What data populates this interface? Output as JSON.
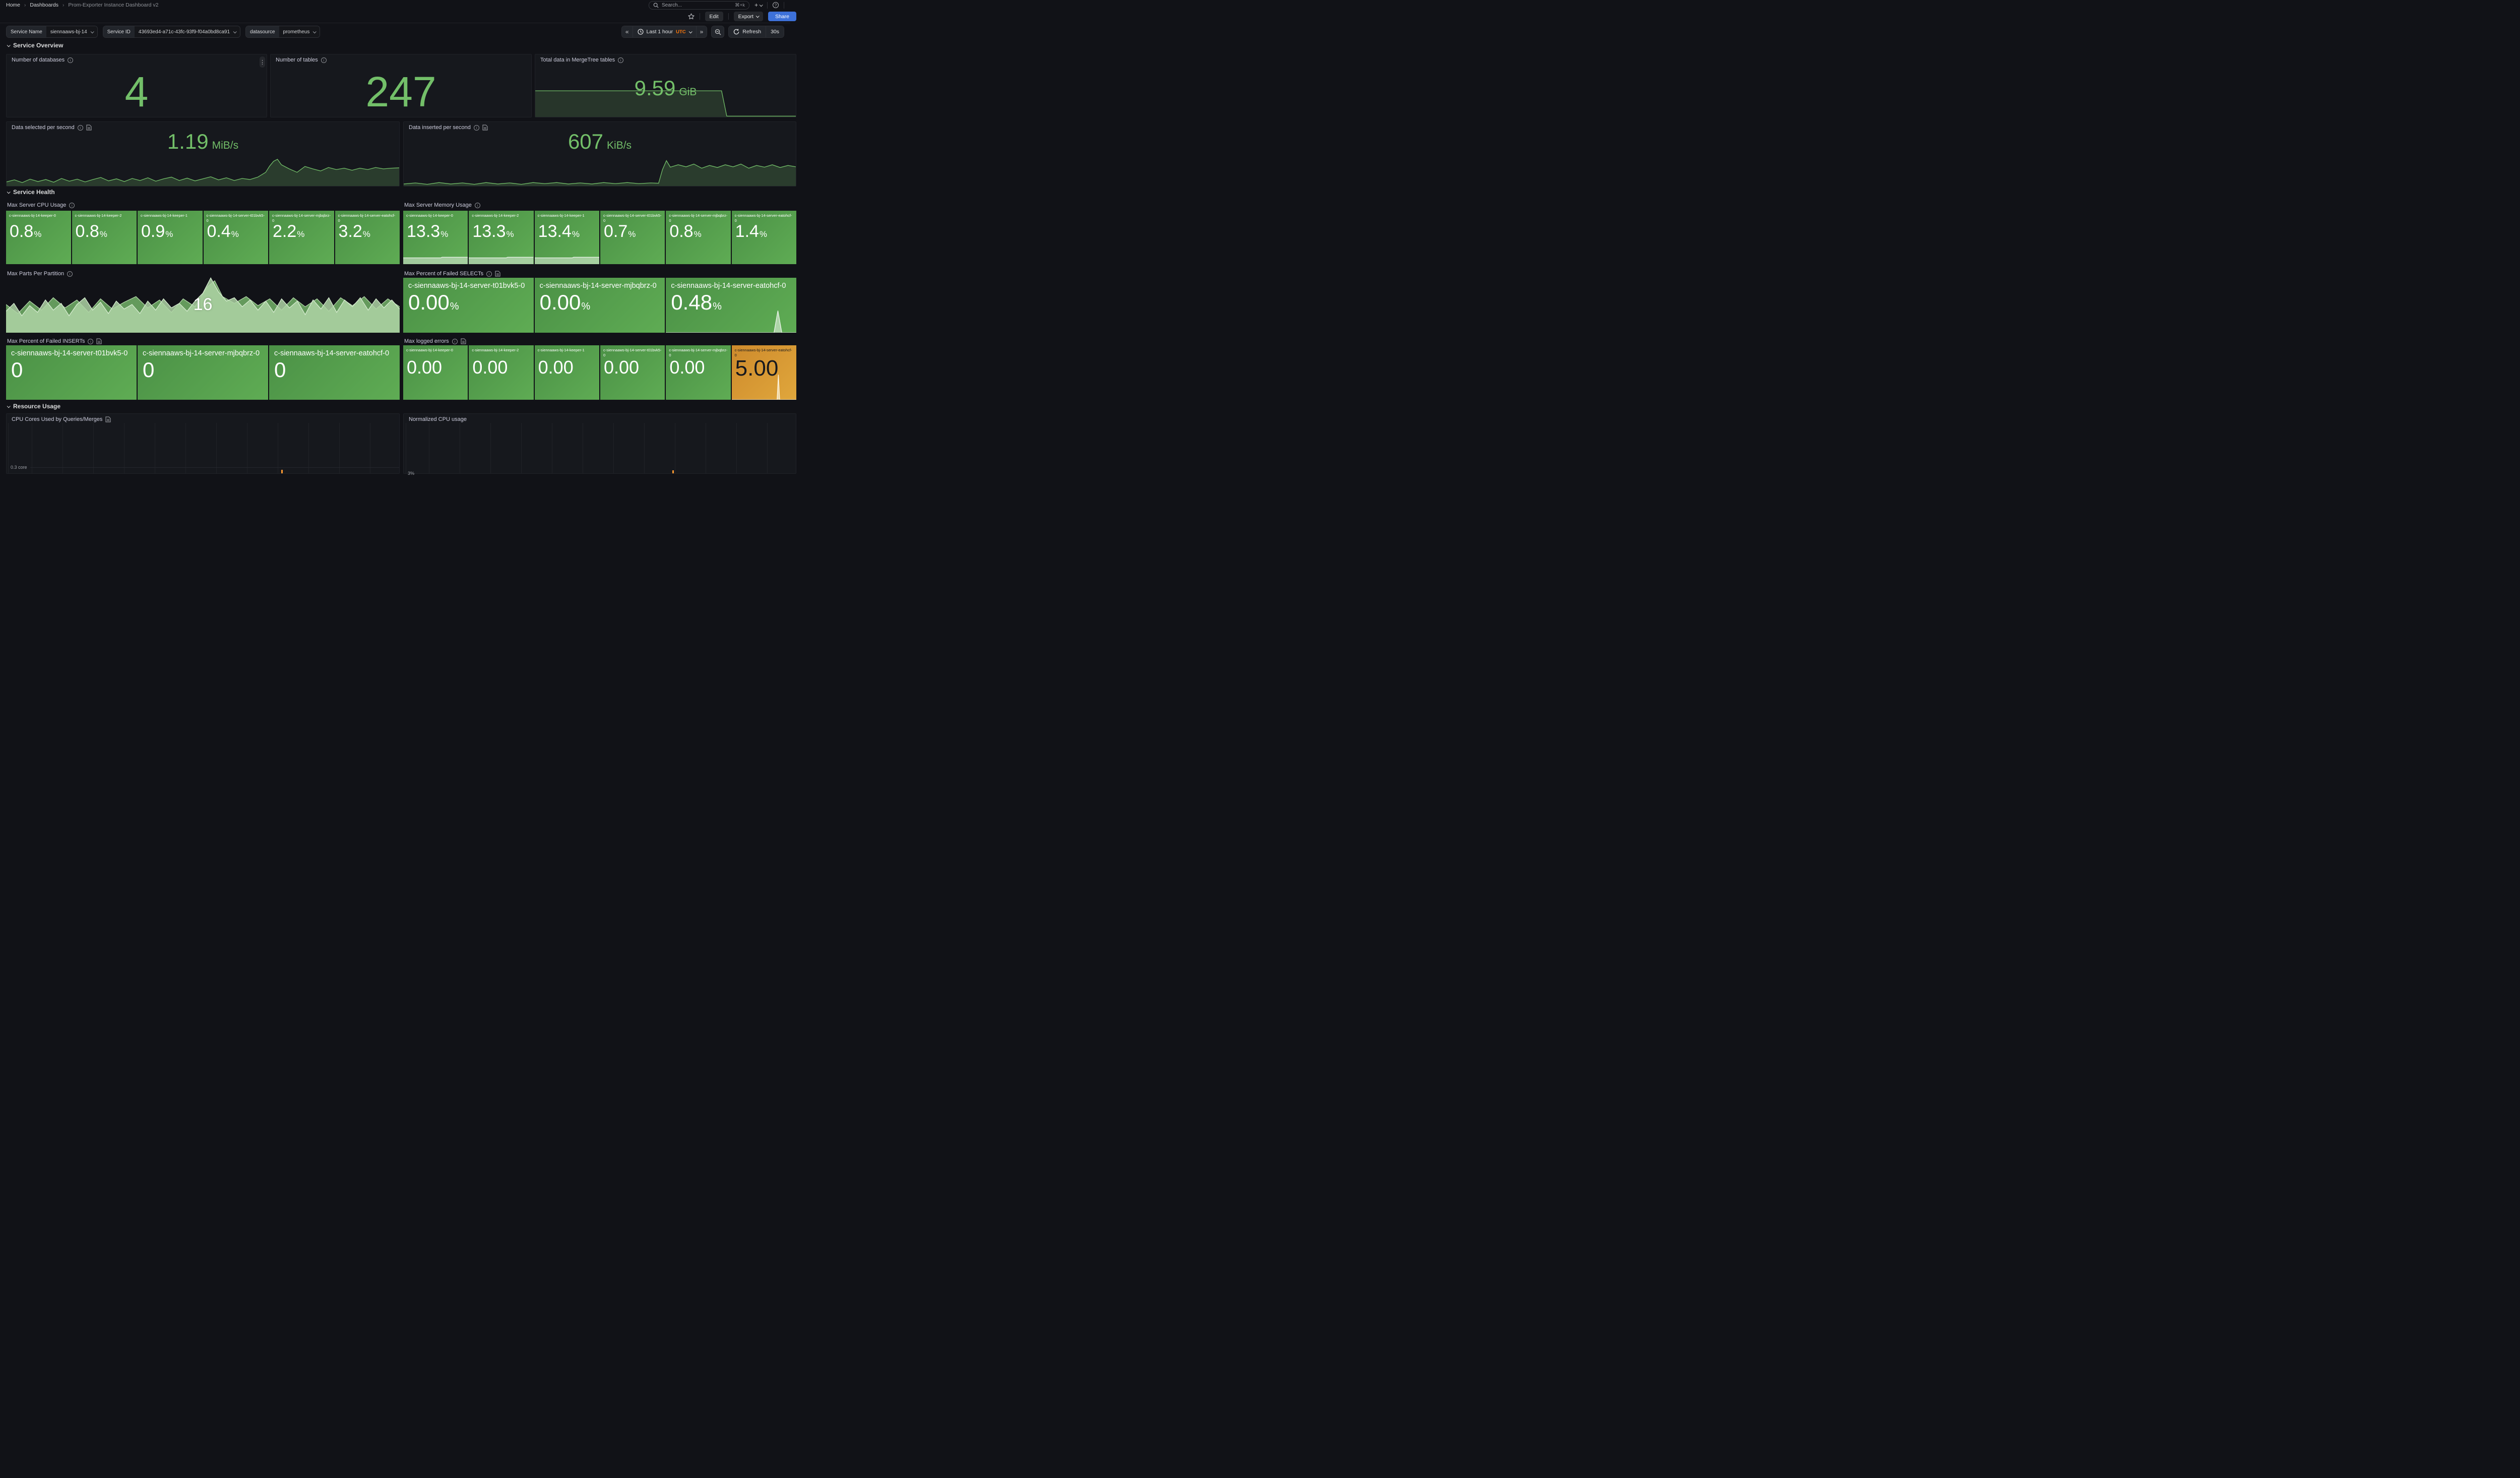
{
  "nav": {
    "breadcrumbs": [
      "Home",
      "Dashboards",
      "Prom-Exporter Instance Dashboard v2"
    ],
    "search_placeholder": "Search...",
    "search_shortcut": "⌘+k"
  },
  "toolbar": {
    "edit_label": "Edit",
    "export_label": "Export",
    "share_label": "Share"
  },
  "filters": [
    {
      "label": "Service Name",
      "value": "siennaaws-bj-14"
    },
    {
      "label": "Service ID",
      "value": "43693ed4-a71c-43fc-93f9-f04a0bd8ca91"
    },
    {
      "label": "datasource",
      "value": "prometheus"
    }
  ],
  "timebar": {
    "range": "Last 1 hour",
    "timezone": "UTC",
    "refresh_label": "Refresh",
    "interval": "30s"
  },
  "sections": {
    "overview": "Service Overview",
    "health": "Service Health",
    "resource": "Resource Usage"
  },
  "colors": {
    "green": "#73BF69",
    "tile_green_start": "#4B9146",
    "tile_green_end": "#5FAC54",
    "tile_orange_start": "#CE8A2C",
    "tile_orange_end": "#E0A73C",
    "share_blue": "#3D71D9",
    "utc_orange": "#FF780A",
    "spike_orange": "#FF9830"
  },
  "panels": {
    "databases": {
      "title": "Number of databases",
      "value": "4"
    },
    "tables": {
      "title": "Number of tables",
      "value": "247"
    },
    "mergetree": {
      "title": "Total data in MergeTree tables",
      "value": "9.59",
      "unit": "GiB",
      "spark": [
        [
          0,
          96
        ],
        [
          71.5,
          96
        ],
        [
          73.5,
          3
        ],
        [
          100,
          3
        ]
      ]
    },
    "selected": {
      "title": "Data selected per second",
      "value": "1.19",
      "unit": "MiB/s",
      "spark": [
        [
          0,
          12
        ],
        [
          2,
          18
        ],
        [
          4,
          10
        ],
        [
          6,
          20
        ],
        [
          8,
          13
        ],
        [
          10,
          19
        ],
        [
          12,
          11
        ],
        [
          14,
          22
        ],
        [
          16,
          14
        ],
        [
          18,
          20
        ],
        [
          20,
          12
        ],
        [
          22,
          19
        ],
        [
          24,
          25
        ],
        [
          26,
          15
        ],
        [
          28,
          21
        ],
        [
          30,
          13
        ],
        [
          32,
          22
        ],
        [
          34,
          16
        ],
        [
          36,
          24
        ],
        [
          38,
          14
        ],
        [
          40,
          21
        ],
        [
          42,
          26
        ],
        [
          44,
          16
        ],
        [
          46,
          23
        ],
        [
          48,
          15
        ],
        [
          50,
          21
        ],
        [
          52,
          27
        ],
        [
          54,
          18
        ],
        [
          56,
          24
        ],
        [
          58,
          16
        ],
        [
          60,
          22
        ],
        [
          62,
          19
        ],
        [
          64,
          26
        ],
        [
          66,
          40
        ],
        [
          67,
          58
        ],
        [
          68,
          72
        ],
        [
          69,
          78
        ],
        [
          70,
          62
        ],
        [
          72,
          50
        ],
        [
          74,
          40
        ],
        [
          76,
          57
        ],
        [
          78,
          50
        ],
        [
          80,
          44
        ],
        [
          82,
          54
        ],
        [
          84,
          48
        ],
        [
          86,
          52
        ],
        [
          88,
          46
        ],
        [
          90,
          52
        ],
        [
          92,
          48
        ],
        [
          94,
          54
        ],
        [
          96,
          50
        ],
        [
          98,
          52
        ],
        [
          100,
          53
        ]
      ]
    },
    "inserted": {
      "title": "Data inserted per second",
      "value": "607",
      "unit": "KiB/s",
      "spark": [
        [
          0,
          6
        ],
        [
          3,
          9
        ],
        [
          6,
          5
        ],
        [
          9,
          10
        ],
        [
          12,
          6
        ],
        [
          15,
          9
        ],
        [
          18,
          5
        ],
        [
          21,
          10
        ],
        [
          24,
          6
        ],
        [
          27,
          9
        ],
        [
          30,
          5
        ],
        [
          33,
          10
        ],
        [
          36,
          7
        ],
        [
          39,
          10
        ],
        [
          42,
          6
        ],
        [
          45,
          9
        ],
        [
          48,
          6
        ],
        [
          51,
          10
        ],
        [
          54,
          7
        ],
        [
          57,
          10
        ],
        [
          60,
          7
        ],
        [
          63,
          9
        ],
        [
          65,
          8
        ],
        [
          66,
          48
        ],
        [
          67,
          74
        ],
        [
          68,
          55
        ],
        [
          70,
          62
        ],
        [
          72,
          56
        ],
        [
          74,
          64
        ],
        [
          76,
          52
        ],
        [
          78,
          60
        ],
        [
          80,
          54
        ],
        [
          82,
          62
        ],
        [
          84,
          56
        ],
        [
          86,
          64
        ],
        [
          88,
          52
        ],
        [
          90,
          60
        ],
        [
          92,
          55
        ],
        [
          94,
          62
        ],
        [
          96,
          54
        ],
        [
          98,
          60
        ],
        [
          100,
          56
        ]
      ]
    },
    "cpu": {
      "title": "Max Server CPU Usage",
      "tiles": [
        {
          "name": "c-siennaaws-bj-14-keeper-0",
          "value": "0.8",
          "unit": "%"
        },
        {
          "name": "c-siennaaws-bj-14-keeper-2",
          "value": "0.8",
          "unit": "%"
        },
        {
          "name": "c-siennaaws-bj-14-keeper-1",
          "value": "0.9",
          "unit": "%"
        },
        {
          "name": "c-siennaaws-bj-14-server-t01bvk5-0",
          "value": "0.4",
          "unit": "%"
        },
        {
          "name": "c-siennaaws-bj-14-server-mjbqbrz-0",
          "value": "2.2",
          "unit": "%"
        },
        {
          "name": "c-siennaaws-bj-14-server-eatohcf-0",
          "value": "3.2",
          "unit": "%"
        }
      ]
    },
    "memory": {
      "title": "Max Server Memory Usage",
      "strip": [
        [
          0,
          78
        ],
        [
          58,
          78
        ],
        [
          60,
          86
        ],
        [
          100,
          86
        ]
      ],
      "tiles": [
        {
          "name": "c-siennaaws-bj-14-keeper-0",
          "value": "13.3",
          "unit": "%"
        },
        {
          "name": "c-siennaaws-bj-14-keeper-2",
          "value": "13.3",
          "unit": "%"
        },
        {
          "name": "c-siennaaws-bj-14-keeper-1",
          "value": "13.4",
          "unit": "%"
        },
        {
          "name": "c-siennaaws-bj-14-server-t01bvk5-0",
          "value": "0.7",
          "unit": "%"
        },
        {
          "name": "c-siennaaws-bj-14-server-mjbqbrz-0",
          "value": "0.8",
          "unit": "%"
        },
        {
          "name": "c-siennaaws-bj-14-server-eatohcf-0",
          "value": "1.4",
          "unit": "%"
        }
      ]
    },
    "parts": {
      "title": "Max Parts Per Partition",
      "value": "16",
      "spark_back": [
        [
          0,
          50
        ],
        [
          3,
          34
        ],
        [
          6,
          56
        ],
        [
          9,
          40
        ],
        [
          12,
          62
        ],
        [
          15,
          44
        ],
        [
          18,
          58
        ],
        [
          21,
          36
        ],
        [
          24,
          60
        ],
        [
          27,
          42
        ],
        [
          30,
          54
        ],
        [
          33,
          64
        ],
        [
          36,
          44
        ],
        [
          39,
          58
        ],
        [
          42,
          36
        ],
        [
          45,
          60
        ],
        [
          48,
          46
        ],
        [
          51,
          80
        ],
        [
          53,
          92
        ],
        [
          55,
          64
        ],
        [
          58,
          52
        ],
        [
          61,
          64
        ],
        [
          64,
          48
        ],
        [
          67,
          60
        ],
        [
          70,
          40
        ],
        [
          73,
          62
        ],
        [
          76,
          46
        ],
        [
          79,
          60
        ],
        [
          82,
          38
        ],
        [
          85,
          62
        ],
        [
          88,
          48
        ],
        [
          91,
          64
        ],
        [
          94,
          42
        ],
        [
          97,
          60
        ],
        [
          100,
          46
        ]
      ],
      "spark_front": [
        [
          0,
          38
        ],
        [
          2,
          52
        ],
        [
          4,
          30
        ],
        [
          6,
          48
        ],
        [
          8,
          36
        ],
        [
          10,
          58
        ],
        [
          12,
          40
        ],
        [
          14,
          52
        ],
        [
          16,
          30
        ],
        [
          18,
          50
        ],
        [
          20,
          62
        ],
        [
          22,
          40
        ],
        [
          24,
          54
        ],
        [
          26,
          34
        ],
        [
          28,
          56
        ],
        [
          30,
          42
        ],
        [
          32,
          50
        ],
        [
          34,
          34
        ],
        [
          36,
          56
        ],
        [
          38,
          40
        ],
        [
          40,
          60
        ],
        [
          42,
          44
        ],
        [
          44,
          52
        ],
        [
          46,
          38
        ],
        [
          48,
          56
        ],
        [
          50,
          70
        ],
        [
          52,
          97
        ],
        [
          54,
          72
        ],
        [
          56,
          56
        ],
        [
          58,
          62
        ],
        [
          60,
          46
        ],
        [
          62,
          58
        ],
        [
          64,
          40
        ],
        [
          66,
          56
        ],
        [
          68,
          36
        ],
        [
          70,
          60
        ],
        [
          72,
          44
        ],
        [
          74,
          56
        ],
        [
          76,
          32
        ],
        [
          78,
          58
        ],
        [
          80,
          42
        ],
        [
          82,
          62
        ],
        [
          84,
          36
        ],
        [
          86,
          58
        ],
        [
          88,
          46
        ],
        [
          90,
          62
        ],
        [
          92,
          40
        ],
        [
          94,
          60
        ],
        [
          96,
          44
        ],
        [
          98,
          58
        ],
        [
          100,
          42
        ]
      ]
    },
    "failed_selects": {
      "title": "Max Percent of Failed SELECTs",
      "spike": [
        [
          0,
          0
        ],
        [
          83,
          0
        ],
        [
          86,
          40
        ],
        [
          89,
          0
        ],
        [
          100,
          0
        ]
      ],
      "tiles": [
        {
          "name": "c-siennaaws-bj-14-server-t01bvk5-0",
          "value": "0.00",
          "unit": "%"
        },
        {
          "name": "c-siennaaws-bj-14-server-mjbqbrz-0",
          "value": "0.00",
          "unit": "%"
        },
        {
          "name": "c-siennaaws-bj-14-server-eatohcf-0",
          "value": "0.48",
          "unit": "%"
        }
      ]
    },
    "failed_inserts": {
      "title": "Max Percent of Failed INSERTs",
      "tiles": [
        {
          "name": "c-siennaaws-bj-14-server-t01bvk5-0",
          "value": "0"
        },
        {
          "name": "c-siennaaws-bj-14-server-mjbqbrz-0",
          "value": "0"
        },
        {
          "name": "c-siennaaws-bj-14-server-eatohcf-0",
          "value": "0"
        }
      ]
    },
    "errors": {
      "title": "Max logged errors",
      "spike": [
        [
          0,
          0
        ],
        [
          70,
          0
        ],
        [
          72,
          46
        ],
        [
          74,
          0
        ],
        [
          100,
          0
        ]
      ],
      "tiles": [
        {
          "name": "c-siennaaws-bj-14-keeper-0",
          "value": "0.00"
        },
        {
          "name": "c-siennaaws-bj-14-keeper-2",
          "value": "0.00"
        },
        {
          "name": "c-siennaaws-bj-14-keeper-1",
          "value": "0.00"
        },
        {
          "name": "c-siennaaws-bj-14-server-t01bvk5-0",
          "value": "0.00"
        },
        {
          "name": "c-siennaaws-bj-14-server-mjbqbrz-0",
          "value": "0.00"
        },
        {
          "name": "c-siennaaws-bj-14-server-eatohcf-0",
          "value": "5.00"
        }
      ]
    },
    "cpu_cores": {
      "title": "CPU Cores Used by Queries/Merges",
      "axis_label": "0.3 core"
    },
    "normalized_cpu": {
      "title": "Normalized CPU usage",
      "axis_label": "3%"
    }
  }
}
